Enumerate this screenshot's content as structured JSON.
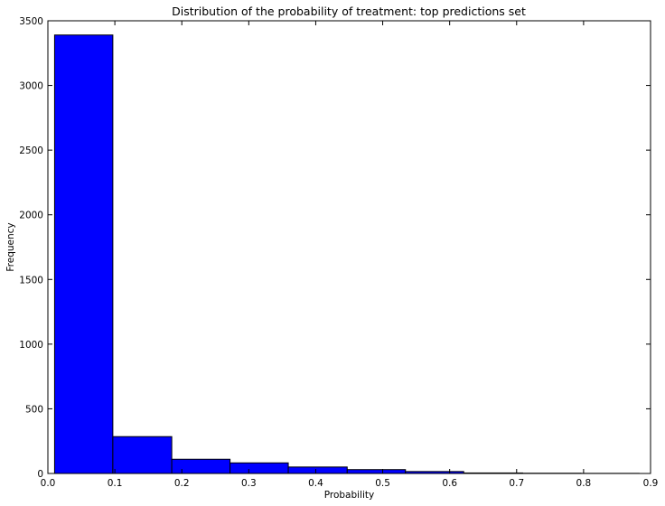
{
  "chart_data": {
    "type": "bar",
    "title": "Distribution of the probability of treatment: top predictions set",
    "xlabel": "Probability",
    "ylabel": "Frequency",
    "xlim": [
      0,
      0.9
    ],
    "ylim": [
      0,
      3500
    ],
    "grid": false,
    "bins": [
      {
        "x0": 0.01,
        "x1": 0.097,
        "value": 3390
      },
      {
        "x0": 0.097,
        "x1": 0.185,
        "value": 285
      },
      {
        "x0": 0.185,
        "x1": 0.272,
        "value": 110
      },
      {
        "x0": 0.272,
        "x1": 0.359,
        "value": 82
      },
      {
        "x0": 0.359,
        "x1": 0.447,
        "value": 50
      },
      {
        "x0": 0.447,
        "x1": 0.534,
        "value": 30
      },
      {
        "x0": 0.534,
        "x1": 0.621,
        "value": 15
      },
      {
        "x0": 0.621,
        "x1": 0.709,
        "value": 4
      },
      {
        "x0": 0.709,
        "x1": 0.796,
        "value": 2
      },
      {
        "x0": 0.796,
        "x1": 0.883,
        "value": 1
      }
    ],
    "xticks": [
      {
        "value": 0.0,
        "label": "0.0"
      },
      {
        "value": 0.1,
        "label": "0.1"
      },
      {
        "value": 0.2,
        "label": "0.2"
      },
      {
        "value": 0.3,
        "label": "0.3"
      },
      {
        "value": 0.4,
        "label": "0.4"
      },
      {
        "value": 0.5,
        "label": "0.5"
      },
      {
        "value": 0.6,
        "label": "0.6"
      },
      {
        "value": 0.7,
        "label": "0.7"
      },
      {
        "value": 0.8,
        "label": "0.8"
      },
      {
        "value": 0.9,
        "label": "0.9"
      }
    ],
    "yticks": [
      {
        "value": 0,
        "label": "0"
      },
      {
        "value": 500,
        "label": "500"
      },
      {
        "value": 1000,
        "label": "1000"
      },
      {
        "value": 1500,
        "label": "1500"
      },
      {
        "value": 2000,
        "label": "2000"
      },
      {
        "value": 2500,
        "label": "2500"
      },
      {
        "value": 3000,
        "label": "3000"
      },
      {
        "value": 3500,
        "label": "3500"
      }
    ],
    "colors": {
      "bar": "#0000ff",
      "edge": "#000000"
    }
  }
}
